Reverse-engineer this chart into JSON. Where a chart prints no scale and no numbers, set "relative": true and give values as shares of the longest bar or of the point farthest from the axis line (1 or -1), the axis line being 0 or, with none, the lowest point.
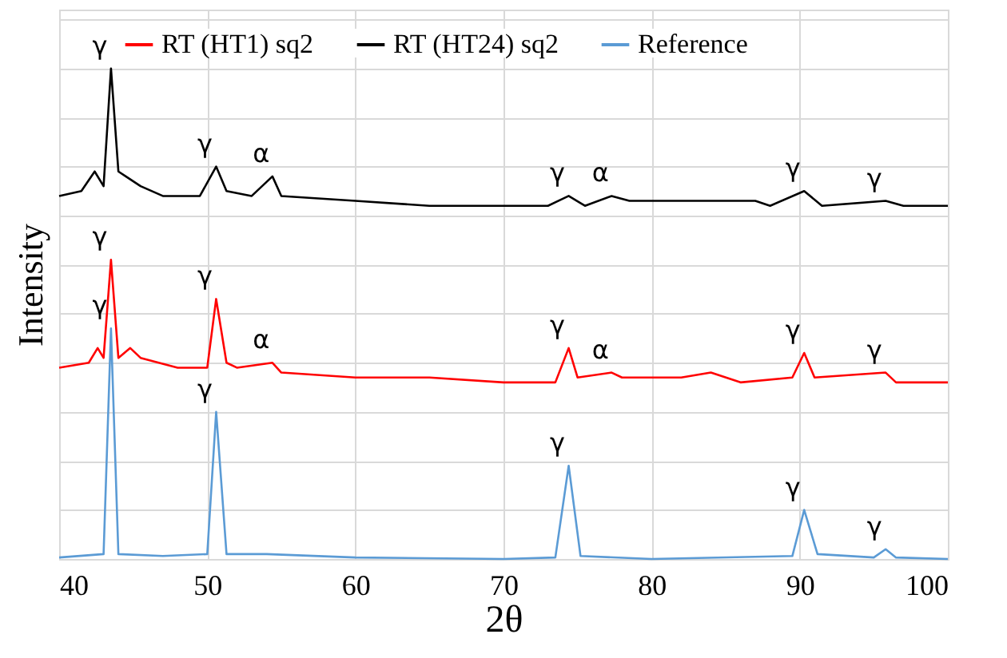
{
  "chart_data": {
    "type": "line",
    "xlabel": "2θ",
    "ylabel": "Intensity",
    "relative": true,
    "xlim": [
      40,
      100
    ],
    "xticks": [
      40,
      50,
      60,
      70,
      80,
      90,
      100
    ],
    "grid": true,
    "legend": "top",
    "series": [
      {
        "name": "RT (HT1) sq2",
        "color": "#ff0000",
        "x": [
          40,
          42,
          42.6,
          43,
          43.5,
          44,
          44.8,
          45.5,
          48,
          50,
          50.6,
          51.3,
          52,
          54.4,
          55,
          60,
          65,
          70,
          73.5,
          74.4,
          75,
          77.3,
          78,
          82,
          84,
          86,
          89.5,
          90.3,
          91,
          95.8,
          96.5,
          100
        ],
        "values": [
          0.39,
          0.4,
          0.43,
          0.41,
          0.61,
          0.41,
          0.43,
          0.41,
          0.39,
          0.39,
          0.53,
          0.4,
          0.39,
          0.4,
          0.38,
          0.37,
          0.37,
          0.36,
          0.36,
          0.43,
          0.37,
          0.38,
          0.37,
          0.37,
          0.38,
          0.36,
          0.37,
          0.42,
          0.37,
          0.38,
          0.36,
          0.36
        ]
      },
      {
        "name": "RT (HT24) sq2",
        "color": "#000000",
        "x": [
          40,
          41.5,
          42.4,
          43,
          43.5,
          44,
          44.5,
          45.5,
          47,
          49.5,
          50.6,
          51.3,
          53,
          54.4,
          55,
          60,
          65,
          70,
          73,
          74.4,
          75.5,
          77.3,
          78.5,
          82,
          85,
          87,
          88,
          90.3,
          91.5,
          95.8,
          97,
          100
        ],
        "values": [
          0.74,
          0.75,
          0.79,
          0.76,
          1,
          0.79,
          0.78,
          0.76,
          0.74,
          0.74,
          0.8,
          0.75,
          0.74,
          0.78,
          0.74,
          0.73,
          0.72,
          0.72,
          0.72,
          0.74,
          0.72,
          0.74,
          0.73,
          0.73,
          0.73,
          0.73,
          0.72,
          0.75,
          0.72,
          0.73,
          0.72,
          0.72
        ]
      },
      {
        "name": "Reference",
        "color": "#5b9bd5",
        "x": [
          40,
          43,
          43.5,
          44,
          47,
          50,
          50.6,
          51.3,
          54,
          60,
          70,
          73.5,
          74.4,
          75.2,
          80,
          89.5,
          90.3,
          91.2,
          95,
          95.8,
          96.5,
          100
        ],
        "values": [
          0.003,
          0.01,
          0.47,
          0.01,
          0.006,
          0.01,
          0.3,
          0.01,
          0.01,
          0.003,
          0,
          0.003,
          0.19,
          0.006,
          0,
          0.006,
          0.1,
          0.01,
          0.003,
          0.02,
          0.003,
          0
        ]
      }
    ],
    "annotations": [
      {
        "text": "γ",
        "x": 43.5,
        "y": 1
      },
      {
        "text": "γ",
        "x": 50.6,
        "y": 0.8
      },
      {
        "text": "α",
        "x": 54.4,
        "y": 0.78
      },
      {
        "text": "γ",
        "x": 74.4,
        "y": 0.74
      },
      {
        "text": "α",
        "x": 77.3,
        "y": 0.74
      },
      {
        "text": "γ",
        "x": 90.3,
        "y": 0.75
      },
      {
        "text": "γ",
        "x": 95.8,
        "y": 0.73
      },
      {
        "text": "γ",
        "x": 43.5,
        "y": 0.61
      },
      {
        "text": "γ",
        "x": 50.6,
        "y": 0.53
      },
      {
        "text": "α",
        "x": 54.4,
        "y": 0.4
      },
      {
        "text": "γ",
        "x": 74.4,
        "y": 0.43
      },
      {
        "text": "α",
        "x": 77.3,
        "y": 0.38
      },
      {
        "text": "γ",
        "x": 90.3,
        "y": 0.42
      },
      {
        "text": "γ",
        "x": 95.8,
        "y": 0.38
      },
      {
        "text": "γ",
        "x": 43.5,
        "y": 0.47
      },
      {
        "text": "γ",
        "x": 50.6,
        "y": 0.3
      },
      {
        "text": "γ",
        "x": 74.4,
        "y": 0.19
      },
      {
        "text": "γ",
        "x": 90.3,
        "y": 0.1
      },
      {
        "text": "γ",
        "x": 95.8,
        "y": 0.02
      }
    ]
  }
}
